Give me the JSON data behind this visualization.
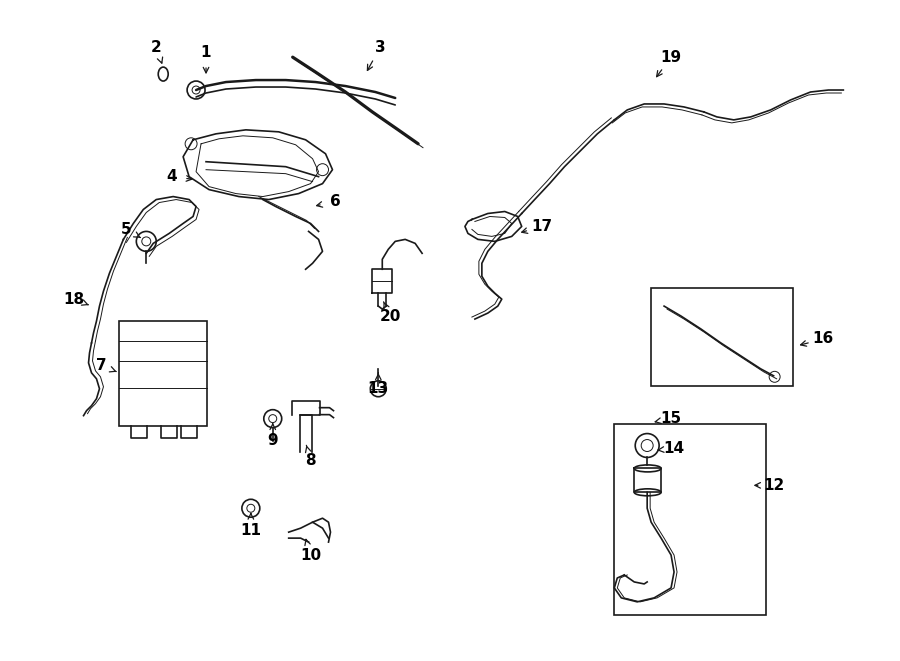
{
  "bg_color": "#ffffff",
  "line_color": "#1a1a1a",
  "label_color": "#000000",
  "fig_width": 9.0,
  "fig_height": 6.61,
  "dpi": 100,
  "lw_thick": 1.8,
  "lw_main": 1.2,
  "lw_thin": 0.7,
  "label_fontsize": 11,
  "label_arrows": {
    "1": [
      2.05,
      6.1,
      2.05,
      5.85
    ],
    "2": [
      1.55,
      6.15,
      1.62,
      5.95
    ],
    "3": [
      3.8,
      6.15,
      3.65,
      5.88
    ],
    "4": [
      1.7,
      4.85,
      1.95,
      4.82
    ],
    "5": [
      1.25,
      4.32,
      1.42,
      4.22
    ],
    "6": [
      3.35,
      4.6,
      3.12,
      4.55
    ],
    "7": [
      1.0,
      2.95,
      1.18,
      2.88
    ],
    "8": [
      3.1,
      2.0,
      3.05,
      2.18
    ],
    "9": [
      2.72,
      2.2,
      2.72,
      2.38
    ],
    "10": [
      3.1,
      1.05,
      3.05,
      1.22
    ],
    "11": [
      2.5,
      1.3,
      2.5,
      1.48
    ],
    "12": [
      7.75,
      1.75,
      7.52,
      1.75
    ],
    "13": [
      3.78,
      2.72,
      3.78,
      2.88
    ],
    "14": [
      6.75,
      2.12,
      6.55,
      2.1
    ],
    "15": [
      6.72,
      2.42,
      6.52,
      2.38
    ],
    "16": [
      8.25,
      3.22,
      7.98,
      3.15
    ],
    "17": [
      5.42,
      4.35,
      5.18,
      4.28
    ],
    "18": [
      0.72,
      3.62,
      0.9,
      3.55
    ],
    "19": [
      6.72,
      6.05,
      6.55,
      5.82
    ],
    "20": [
      3.9,
      3.45,
      3.82,
      3.62
    ]
  }
}
